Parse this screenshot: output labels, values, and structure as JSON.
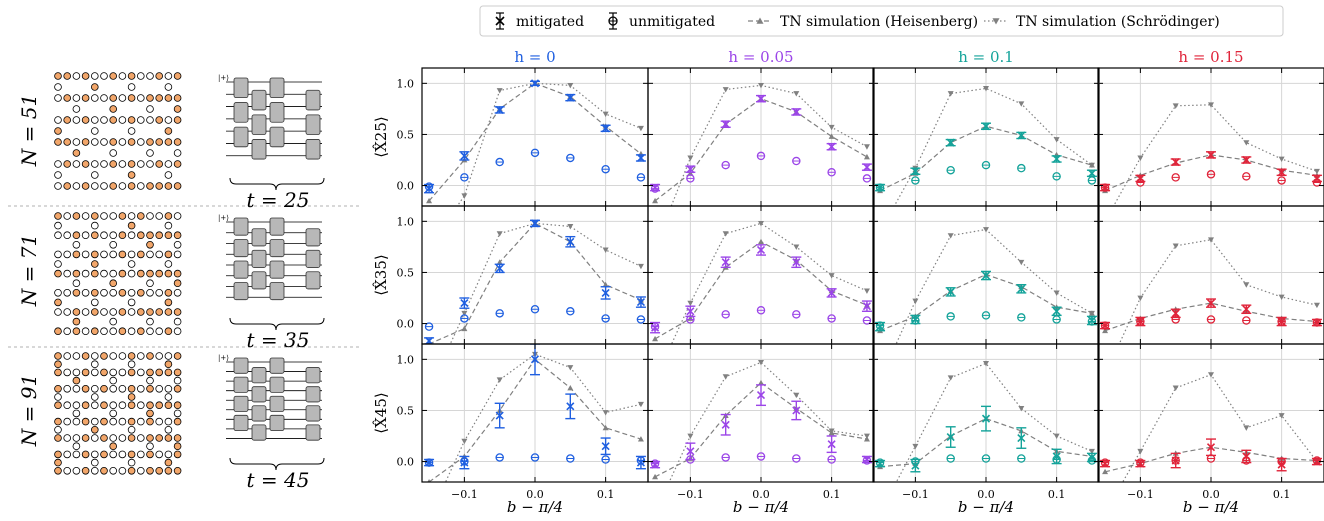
{
  "legend": {
    "items": [
      {
        "label": "mitigated",
        "marker": "x"
      },
      {
        "label": "unmitigated",
        "marker": "o"
      },
      {
        "label": "TN simulation (Heisenberg)",
        "marker": "^",
        "dash": "dashed"
      },
      {
        "label": "TN simulation (Schrödinger)",
        "marker": "v",
        "dash": "dotted"
      }
    ]
  },
  "rows": [
    {
      "n_label": "N = 51",
      "t_label": "t = 25",
      "ylabel": "⟨X̂25⟩"
    },
    {
      "n_label": "N = 71",
      "t_label": "t = 35",
      "ylabel": "⟨X̂35⟩"
    },
    {
      "n_label": "N = 91",
      "t_label": "t = 45",
      "ylabel": "⟨X̂45⟩"
    }
  ],
  "cols": [
    {
      "title": "h = 0",
      "color": "#1f5fe0"
    },
    {
      "title": "h = 0.05",
      "color": "#9b45e8"
    },
    {
      "title": "h = 0.1",
      "color": "#14a39a"
    },
    {
      "title": "h = 0.15",
      "color": "#e0243a"
    }
  ],
  "xlabel": "b − π/4",
  "xticks": [
    "−0.1",
    "0.0",
    "0.1"
  ],
  "yticks": [
    "0.0",
    "0.5",
    "1.0"
  ],
  "colors": {
    "tn": "#808080",
    "grid": "#d6d6d6",
    "node_fill": "#f2a66a",
    "gate": "#b8b8b8"
  },
  "chart_data": {
    "type": "line",
    "x": [
      -0.15,
      -0.1,
      -0.05,
      0.0,
      0.05,
      0.1,
      0.15
    ],
    "xlim": [
      -0.16,
      0.16
    ],
    "ylim": [
      -0.2,
      1.15
    ],
    "grid": true,
    "legend_position": "top",
    "panels": [
      {
        "row": 0,
        "col": 0,
        "mitigated": [
          -0.03,
          0.29,
          0.74,
          1.0,
          0.86,
          0.56,
          0.27
        ],
        "mit_err": [
          0.04,
          0.04,
          0.03,
          0.02,
          0.03,
          0.03,
          0.03
        ],
        "unmitigated": [
          -0.01,
          0.08,
          0.23,
          0.32,
          0.27,
          0.16,
          0.08
        ],
        "heisenberg": [
          -0.15,
          0.25,
          0.75,
          1.0,
          0.87,
          0.58,
          0.31
        ],
        "schrodinger": [
          -0.6,
          -0.1,
          0.93,
          1.0,
          0.98,
          0.7,
          0.56
        ]
      },
      {
        "row": 0,
        "col": 1,
        "mitigated": [
          -0.02,
          0.16,
          0.6,
          0.85,
          0.72,
          0.38,
          0.18
        ],
        "mit_err": [
          0.03,
          0.03,
          0.03,
          0.03,
          0.03,
          0.03,
          0.03
        ],
        "unmitigated": [
          -0.03,
          0.07,
          0.2,
          0.29,
          0.24,
          0.13,
          0.07
        ],
        "heisenberg": [
          -0.15,
          0.12,
          0.6,
          0.85,
          0.72,
          0.48,
          0.28
        ],
        "schrodinger": [
          -0.6,
          0.27,
          0.94,
          0.98,
          0.9,
          0.57,
          0.38
        ]
      },
      {
        "row": 0,
        "col": 2,
        "mitigated": [
          -0.02,
          0.14,
          0.42,
          0.58,
          0.49,
          0.26,
          0.12
        ],
        "mit_err": [
          0.03,
          0.03,
          0.03,
          0.03,
          0.03,
          0.03,
          0.03
        ],
        "unmitigated": [
          -0.02,
          0.05,
          0.15,
          0.2,
          0.17,
          0.09,
          0.05
        ],
        "heisenberg": [
          -0.05,
          0.12,
          0.42,
          0.58,
          0.49,
          0.3,
          0.2
        ],
        "schrodinger": [
          -0.45,
          0.17,
          0.9,
          0.95,
          0.8,
          0.45,
          0.2
        ]
      },
      {
        "row": 0,
        "col": 3,
        "mitigated": [
          -0.02,
          0.07,
          0.23,
          0.3,
          0.25,
          0.13,
          0.07
        ],
        "mit_err": [
          0.03,
          0.03,
          0.03,
          0.03,
          0.03,
          0.03,
          0.03
        ],
        "unmitigated": [
          -0.02,
          0.03,
          0.08,
          0.11,
          0.09,
          0.05,
          0.03
        ],
        "heisenberg": [
          -0.05,
          0.1,
          0.22,
          0.3,
          0.25,
          0.15,
          0.1
        ],
        "schrodinger": [
          -0.35,
          0.27,
          0.78,
          0.79,
          0.42,
          0.26,
          0.14
        ]
      },
      {
        "row": 1,
        "col": 0,
        "mitigated": [
          -0.17,
          0.2,
          0.54,
          0.98,
          0.8,
          0.3,
          0.21
        ],
        "mit_err": [
          0.03,
          0.05,
          0.04,
          0.03,
          0.05,
          0.06,
          0.05
        ],
        "unmitigated": [
          -0.03,
          0.05,
          0.1,
          0.14,
          0.12,
          0.05,
          0.04
        ],
        "heisenberg": [
          -0.2,
          -0.05,
          0.6,
          0.98,
          0.8,
          0.38,
          0.23
        ],
        "schrodinger": [
          -0.65,
          0.1,
          0.88,
          0.98,
          0.95,
          0.72,
          0.56
        ]
      },
      {
        "row": 1,
        "col": 1,
        "mitigated": [
          -0.04,
          0.12,
          0.6,
          0.72,
          0.6,
          0.3,
          0.17
        ],
        "mit_err": [
          0.05,
          0.05,
          0.05,
          0.05,
          0.05,
          0.04,
          0.05
        ],
        "unmitigated": [
          -0.03,
          0.04,
          0.09,
          0.13,
          0.09,
          0.05,
          0.03
        ],
        "heisenberg": [
          -0.15,
          0.05,
          0.55,
          0.8,
          0.62,
          0.32,
          0.18
        ],
        "schrodinger": [
          -0.55,
          0.2,
          0.88,
          0.98,
          0.75,
          0.47,
          0.32
        ]
      },
      {
        "row": 1,
        "col": 2,
        "mitigated": [
          -0.03,
          0.04,
          0.31,
          0.47,
          0.34,
          0.12,
          0.03
        ],
        "mit_err": [
          0.04,
          0.04,
          0.04,
          0.04,
          0.04,
          0.04,
          0.04
        ],
        "unmitigated": [
          -0.02,
          0.03,
          0.07,
          0.08,
          0.06,
          0.04,
          0.02
        ],
        "heisenberg": [
          -0.07,
          0.07,
          0.32,
          0.48,
          0.36,
          0.16,
          0.1
        ],
        "schrodinger": [
          -0.55,
          0.22,
          0.86,
          0.92,
          0.6,
          0.3,
          0.1
        ]
      },
      {
        "row": 1,
        "col": 3,
        "mitigated": [
          -0.02,
          0.02,
          0.1,
          0.2,
          0.14,
          0.02,
          0.01
        ],
        "mit_err": [
          0.03,
          0.04,
          0.04,
          0.04,
          0.04,
          0.04,
          0.03
        ],
        "unmitigated": [
          -0.02,
          0.02,
          0.04,
          0.04,
          0.03,
          0.02,
          0.01
        ],
        "heisenberg": [
          -0.07,
          0.05,
          0.14,
          0.2,
          0.12,
          0.05,
          0.02
        ],
        "schrodinger": [
          -0.5,
          0.25,
          0.76,
          0.82,
          0.38,
          0.26,
          0.18
        ]
      },
      {
        "row": 2,
        "col": 0,
        "mitigated": [
          -0.01,
          -0.01,
          0.45,
          1.0,
          0.54,
          0.15,
          -0.01
        ],
        "mit_err": [
          0.03,
          0.06,
          0.12,
          0.15,
          0.12,
          0.08,
          0.06
        ],
        "unmitigated": [
          -0.01,
          0.0,
          0.04,
          0.04,
          0.03,
          0.02,
          0.01
        ],
        "heisenberg": [
          -0.2,
          0.05,
          0.5,
          1.0,
          0.72,
          0.33,
          0.22
        ],
        "schrodinger": [
          -0.55,
          0.2,
          0.8,
          1.05,
          0.92,
          0.48,
          0.56
        ]
      },
      {
        "row": 2,
        "col": 1,
        "mitigated": [
          -0.03,
          0.1,
          0.36,
          0.65,
          0.5,
          0.17,
          0.02
        ],
        "mit_err": [
          0.03,
          0.08,
          0.1,
          0.1,
          0.09,
          0.08,
          0.03
        ],
        "unmitigated": [
          -0.02,
          0.02,
          0.04,
          0.05,
          0.03,
          0.02,
          0.01
        ],
        "heisenberg": [
          -0.15,
          0.03,
          0.45,
          0.77,
          0.52,
          0.28,
          0.22
        ],
        "schrodinger": [
          -0.5,
          0.25,
          0.83,
          0.97,
          0.65,
          0.3,
          0.25
        ]
      },
      {
        "row": 2,
        "col": 2,
        "mitigated": [
          -0.02,
          -0.04,
          0.24,
          0.42,
          0.23,
          0.05,
          0.04
        ],
        "mit_err": [
          0.03,
          0.06,
          0.1,
          0.12,
          0.1,
          0.07,
          0.04
        ],
        "unmitigated": [
          -0.01,
          0.0,
          0.03,
          0.03,
          0.03,
          0.02,
          0.01
        ],
        "heisenberg": [
          -0.05,
          -0.02,
          0.25,
          0.42,
          0.3,
          0.1,
          0.05
        ],
        "schrodinger": [
          -0.5,
          0.15,
          0.82,
          0.96,
          0.52,
          0.25,
          0.1
        ]
      },
      {
        "row": 2,
        "col": 3,
        "mitigated": [
          -0.02,
          -0.02,
          0.01,
          0.14,
          0.05,
          -0.03,
          0.0
        ],
        "mit_err": [
          0.03,
          0.03,
          0.07,
          0.08,
          0.06,
          0.06,
          0.03
        ],
        "unmitigated": [
          -0.01,
          -0.01,
          0.01,
          0.03,
          0.01,
          0.0,
          0.01
        ],
        "heisenberg": [
          -0.1,
          -0.02,
          0.08,
          0.14,
          0.09,
          0.03,
          0.01
        ],
        "schrodinger": [
          -0.5,
          0.1,
          0.72,
          0.85,
          0.33,
          0.45,
          0.0
        ]
      }
    ]
  }
}
